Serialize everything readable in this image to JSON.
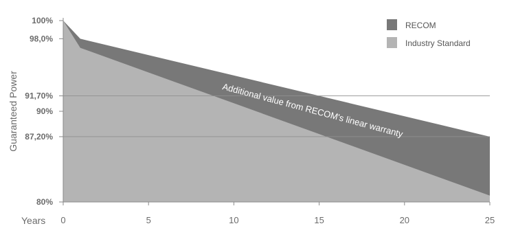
{
  "chart_data": {
    "type": "area",
    "xlabel": "Years",
    "ylabel": "Guaranteed Power",
    "xlim": [
      0,
      25
    ],
    "ylim": [
      80,
      100
    ],
    "x_ticks": [
      "0",
      "5",
      "10",
      "15",
      "20",
      "25"
    ],
    "y_ticks": [
      {
        "value": 100,
        "label": "100%"
      },
      {
        "value": 98.0,
        "label": "98,0%"
      },
      {
        "value": 91.7,
        "label": "91,70%"
      },
      {
        "value": 90,
        "label": "90%"
      },
      {
        "value": 87.2,
        "label": "87,20%"
      },
      {
        "value": 80,
        "label": "80%"
      }
    ],
    "gridlines": [
      91.7,
      87.2
    ],
    "legend_position": "top-right",
    "series": [
      {
        "name": "RECOM",
        "color": "#787878",
        "points": [
          [
            0,
            100
          ],
          [
            1,
            98.0
          ],
          [
            25,
            87.2
          ]
        ]
      },
      {
        "name": "Industry Standard",
        "color": "#b4b4b4",
        "points": [
          [
            0,
            100
          ],
          [
            1,
            97.0
          ],
          [
            25,
            80.7
          ]
        ]
      }
    ],
    "annotation": "Additional value from RECOM's linear warranty"
  }
}
